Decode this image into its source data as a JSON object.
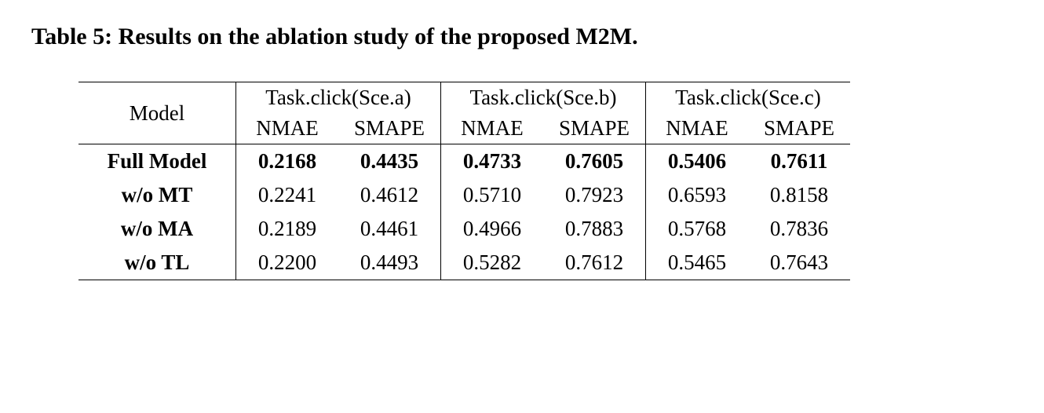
{
  "caption": "Table 5: Results on the ablation study of the proposed M2M.",
  "header": {
    "model": "Model",
    "tasks": [
      "Task.click(Sce.a)",
      "Task.click(Sce.b)",
      "Task.click(Sce.c)"
    ],
    "metrics": [
      "NMAE",
      "SMAPE"
    ]
  },
  "rows": [
    {
      "label": "Full Model",
      "bold": true,
      "values": [
        "0.2168",
        "0.4435",
        "0.4733",
        "0.7605",
        "0.5406",
        "0.7611"
      ]
    },
    {
      "label": "w/o MT",
      "bold": false,
      "values": [
        "0.2241",
        "0.4612",
        "0.5710",
        "0.7923",
        "0.6593",
        "0.8158"
      ]
    },
    {
      "label": "w/o MA",
      "bold": false,
      "values": [
        "0.2189",
        "0.4461",
        "0.4966",
        "0.7883",
        "0.5768",
        "0.7836"
      ]
    },
    {
      "label": "w/o TL",
      "bold": false,
      "values": [
        "0.2200",
        "0.4493",
        "0.5282",
        "0.7612",
        "0.5465",
        "0.7643"
      ]
    }
  ],
  "style": {
    "background_color": "#ffffff",
    "text_color": "#000000",
    "rule_color": "#000000",
    "caption_fontsize": 30,
    "body_fontsize": 27,
    "font_family": "Georgia, 'Times New Roman', serif"
  }
}
